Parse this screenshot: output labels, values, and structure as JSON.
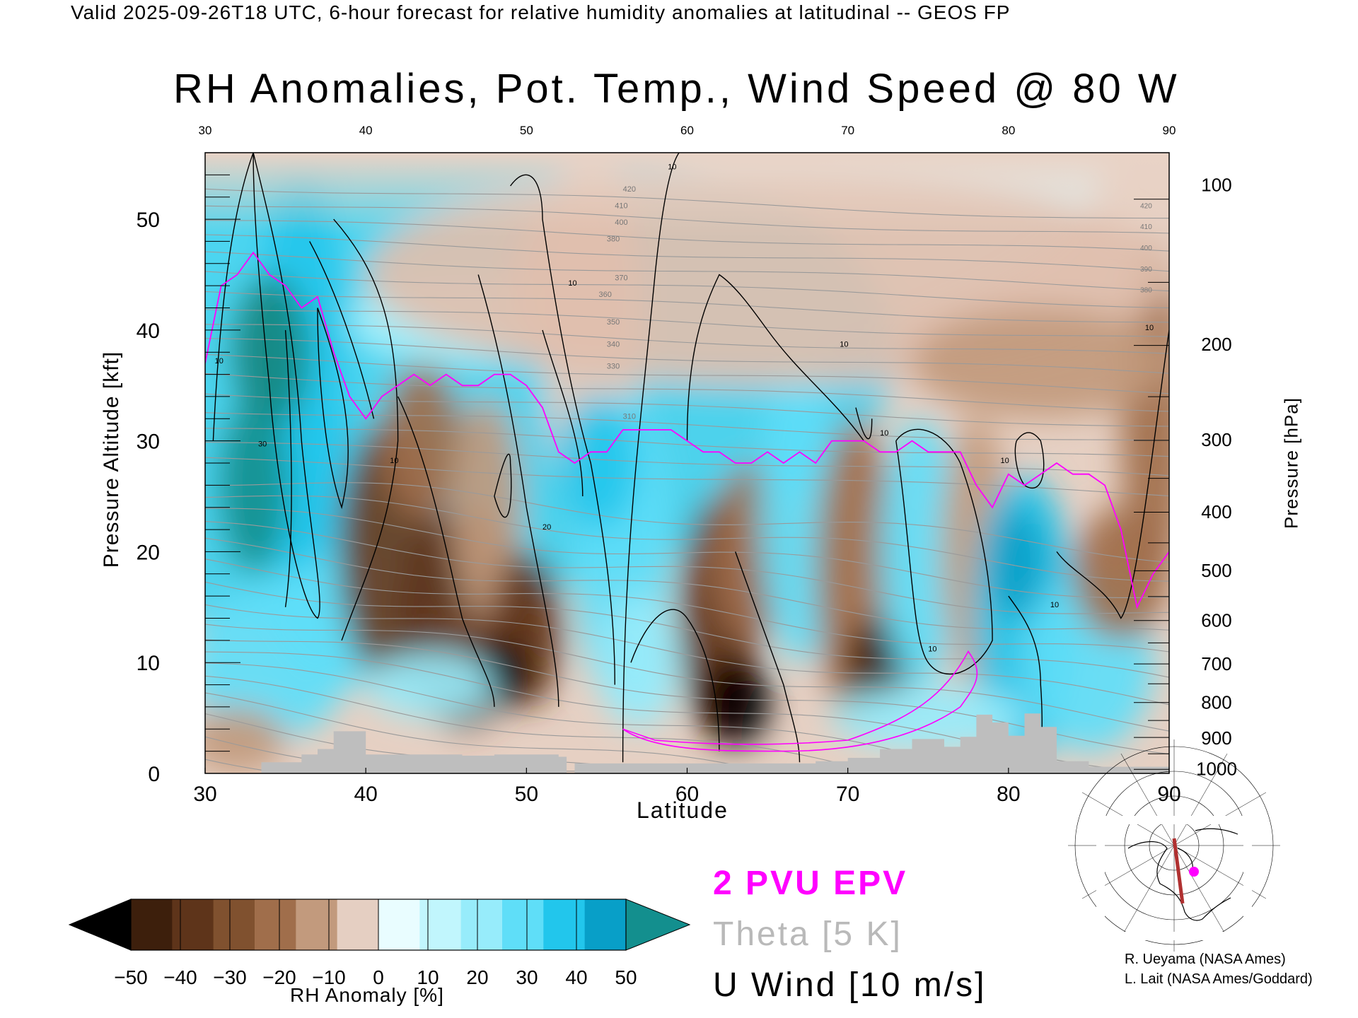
{
  "header": "Valid 2025-09-26T18 UTC, 6-hour forecast for relative humidity anomalies at latitudinal -- GEOS FP",
  "chart_data": {
    "type": "heatmap",
    "title": "RH Anomalies, Pot. Temp., Wind Speed @ 80 W",
    "xlabel": "Latitude",
    "ylabel_left": "Pressure Altitude [kft]",
    "ylabel_right": "Pressure [hPa]",
    "xlim": [
      30,
      90
    ],
    "ylim": [
      0,
      56
    ],
    "x_ticks": [
      "30",
      "40",
      "50",
      "60",
      "70",
      "80",
      "90"
    ],
    "x_ticks_top": [
      "30",
      "40",
      "50",
      "60",
      "70",
      "80",
      "90"
    ],
    "y_ticks_left": [
      "0",
      "10",
      "20",
      "30",
      "40",
      "50"
    ],
    "y_ticks_right": [
      {
        "label": "100",
        "kft": 53.1
      },
      {
        "label": "200",
        "kft": 38.7
      },
      {
        "label": "300",
        "kft": 30.1
      },
      {
        "label": "400",
        "kft": 23.6
      },
      {
        "label": "500",
        "kft": 18.3
      },
      {
        "label": "600",
        "kft": 13.8
      },
      {
        "label": "700",
        "kft": 9.9
      },
      {
        "label": "800",
        "kft": 6.4
      },
      {
        "label": "900",
        "kft": 3.2
      },
      {
        "label": "1000",
        "kft": 0.4
      }
    ],
    "colorbar": {
      "label": "RH Anomaly [%]",
      "ticks": [
        "−50",
        "−40",
        "−30",
        "−20",
        "−10",
        "0",
        "10",
        "20",
        "30",
        "40",
        "50"
      ],
      "colors": [
        "#000000",
        "#3d1f0c",
        "#5e341a",
        "#80512f",
        "#a06e4b",
        "#c29a7d",
        "#e5cfc2",
        "#e9fdff",
        "#c1f6fd",
        "#97ecfb",
        "#5fdef8",
        "#22c6ec",
        "#089fc8",
        "#138f8e"
      ]
    },
    "theta_contour_labels": [
      "420",
      "410",
      "400",
      "380",
      "370",
      "360",
      "350",
      "340",
      "330",
      "310"
    ],
    "wind_contour_labels": [
      "10",
      "20",
      "30"
    ],
    "legend": [
      "2 PVU EPV",
      "Theta [5 K]",
      "U Wind [10 m/s]"
    ],
    "epv_2pvu_line": {
      "lat": [
        30,
        31,
        32,
        33,
        34,
        35,
        36,
        37,
        38,
        39,
        40,
        41,
        42,
        43,
        44,
        45,
        46,
        47,
        48,
        49,
        50,
        51,
        52,
        53,
        54,
        55,
        56,
        57,
        58,
        59,
        60,
        61,
        62,
        63,
        64,
        65,
        66,
        67,
        68,
        69,
        70,
        71,
        72,
        73,
        74,
        75,
        76,
        77,
        78,
        79,
        80,
        81,
        82,
        83,
        84,
        85,
        86,
        87,
        88,
        89,
        90
      ],
      "kft": [
        37,
        44,
        45,
        47,
        45,
        44,
        42,
        43,
        38,
        34,
        32,
        34,
        35,
        36,
        35,
        36,
        35,
        35,
        36,
        36,
        35,
        33,
        29,
        28,
        29,
        29,
        31,
        31,
        31,
        31,
        30,
        29,
        29,
        28,
        28,
        29,
        28,
        29,
        28,
        30,
        30,
        30,
        29,
        29,
        30,
        29,
        29,
        29,
        26,
        24,
        27,
        26,
        27,
        28,
        27,
        27,
        26,
        22,
        15,
        18,
        20
      ]
    },
    "surface_terrain": {
      "lat": [
        30,
        33.5,
        36,
        37,
        38,
        40,
        44,
        46,
        48,
        50,
        52,
        52.5,
        53,
        56,
        60,
        64,
        68,
        70,
        72,
        74,
        76,
        77,
        78,
        79,
        80,
        81,
        82,
        83,
        85,
        90
      ],
      "kft": [
        0,
        1,
        1.7,
        2.2,
        3.8,
        1.7,
        1.7,
        1.6,
        1.7,
        1.7,
        1.5,
        0,
        0.9,
        0.9,
        0.9,
        0.9,
        1.1,
        1.4,
        2.2,
        3.1,
        2.4,
        3.3,
        5.3,
        4.6,
        3.4,
        5.4,
        4.2,
        1.1,
        0.6,
        0
      ]
    }
  },
  "legend_labels": {
    "epv": "2 PVU EPV",
    "theta": "Theta [5 K]",
    "uwind": "U Wind [10 m/s]"
  },
  "credits": {
    "line1": "R. Ueyama (NASA Ames)",
    "line2": "L. Lait (NASA Ames/Goddard)"
  },
  "colors": {
    "epv": "#ff00ff",
    "theta": "#9a9a9a",
    "wind": "#000000",
    "terrain": "#bebebe",
    "cross_section_line": "#b03030"
  }
}
